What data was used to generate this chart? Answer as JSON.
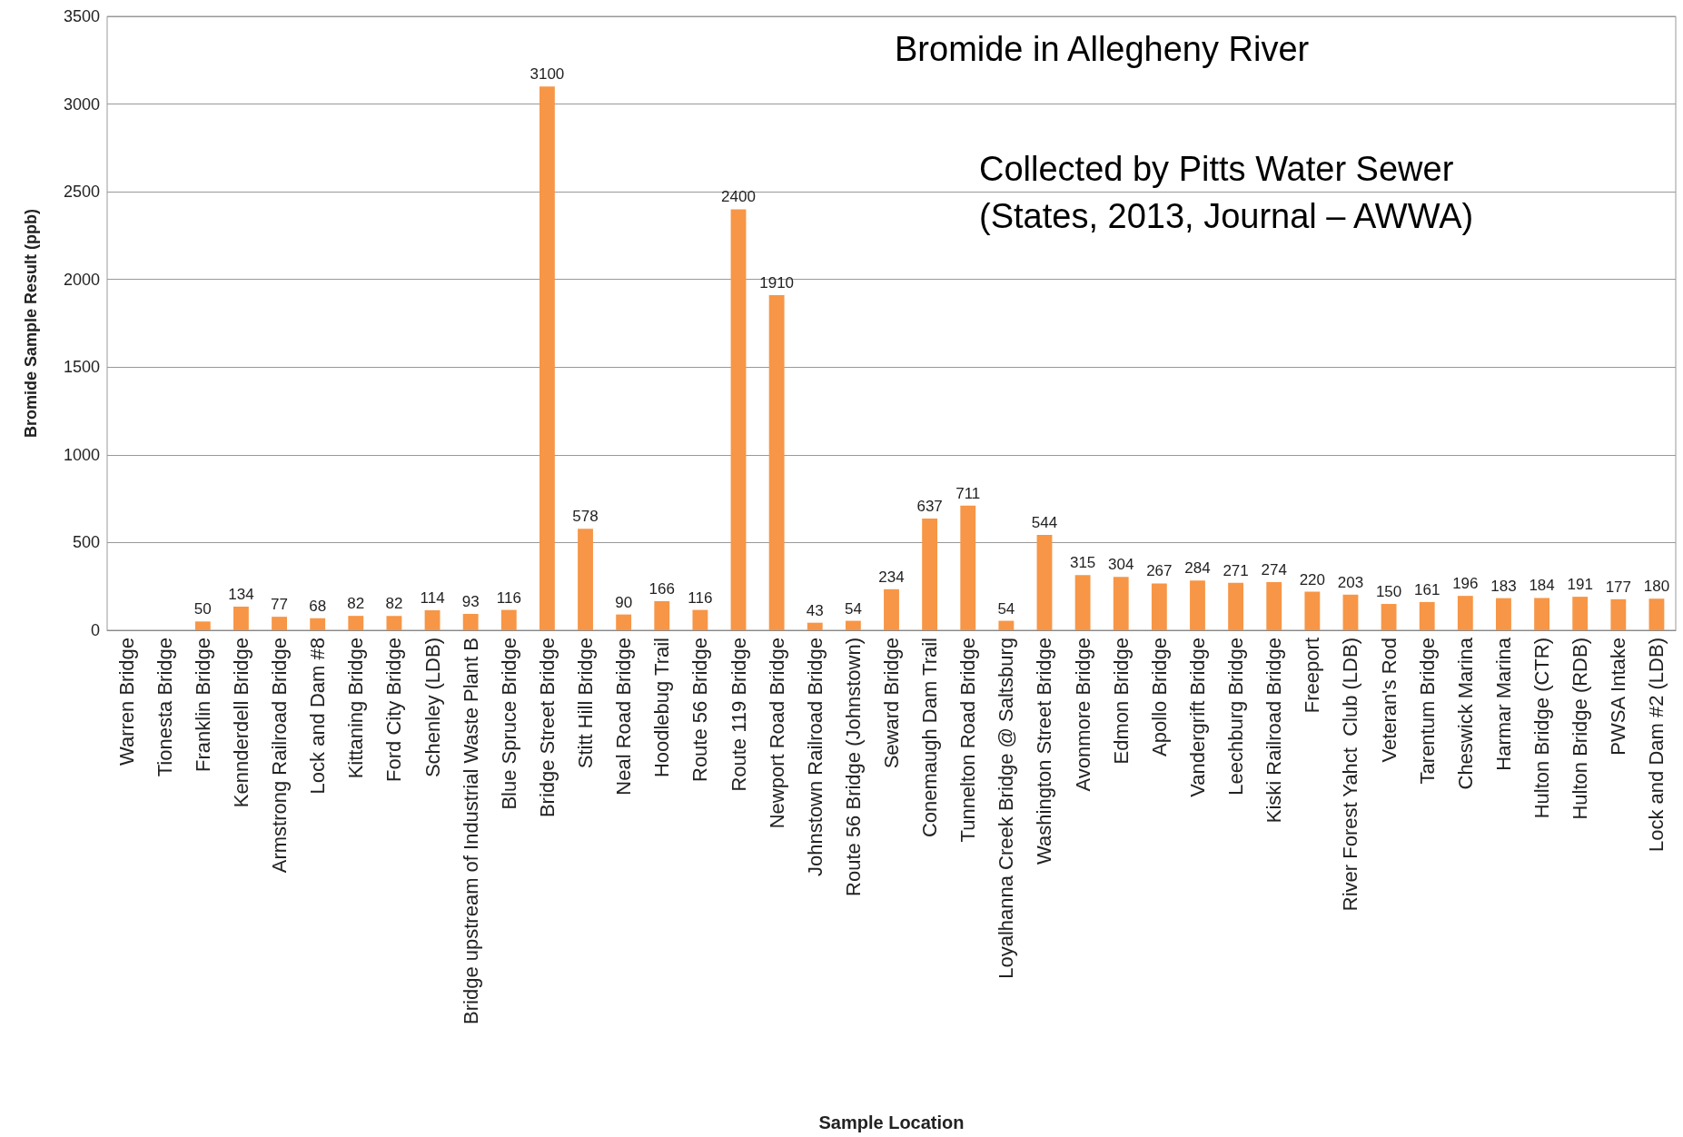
{
  "chart_data": {
    "type": "bar",
    "title": "Bromide in Allegheny River",
    "subtitle": "Collected by Pitts Water Sewer\n(States, 2013, Journal – AWWA)",
    "xlabel": "Sample Location",
    "ylabel": "Bromide Sample Result (ppb)",
    "categories": [
      "Warren Bridge",
      "Tionesta Bridge",
      "Franklin Bridge",
      "Kennderdell Bridge",
      "Armstrong Railroad Bridge",
      "Lock and Dam #8",
      "Kittaning Bridge",
      "Ford City Bridge",
      "Schenley (LDB)",
      "Bridge upstream of Industrial Waste Plant B",
      "Blue Spruce Bridge",
      "Bridge Street Bridge",
      "Stitt Hill Bridge",
      "Neal Road Bridge",
      "Hoodlebug Trail",
      "Route 56 Bridge",
      "Route 119 Bridge",
      "Newport Road Bridge",
      "Johnstown Railroad Bridge",
      "Route 56 Bridge (Johnstown)",
      "Seward Bridge",
      "Conemaugh Dam Trail",
      "Tunnelton Road Bridge",
      "Loyalhanna Creek Bridge @ Saltsburg",
      "Washington Street Bridge",
      "Avonmore Bridge",
      "Edmon Bridge",
      "Apollo Bridge",
      "Vandergrift Bridge",
      "Leechburg Bridge",
      "Kiski Railroad Bridge",
      "Freeport",
      "River Forest Yahct  Club (LDB)",
      "Veteran's Rod",
      "Tarentum Bridge",
      "Cheswick Marina",
      "Harmar Marina",
      "Hulton Bridge (CTR)",
      "Hulton Bridge (RDB)",
      "PWSA Intake",
      "Lock and Dam #2 (LDB)"
    ],
    "values": [
      null,
      null,
      50,
      134,
      77,
      68,
      82,
      82,
      114,
      93,
      116,
      3100,
      578,
      90,
      166,
      116,
      2400,
      1910,
      43,
      54,
      234,
      637,
      711,
      54,
      544,
      315,
      304,
      267,
      284,
      271,
      274,
      220,
      203,
      150,
      161,
      196,
      183,
      184,
      191,
      177,
      180
    ],
    "color": "#f79646",
    "ylim": [
      0,
      3500
    ],
    "yticks": [
      0,
      500,
      1000,
      1500,
      2000,
      2500,
      3000,
      3500
    ],
    "grid": "y",
    "data_labels": true
  }
}
